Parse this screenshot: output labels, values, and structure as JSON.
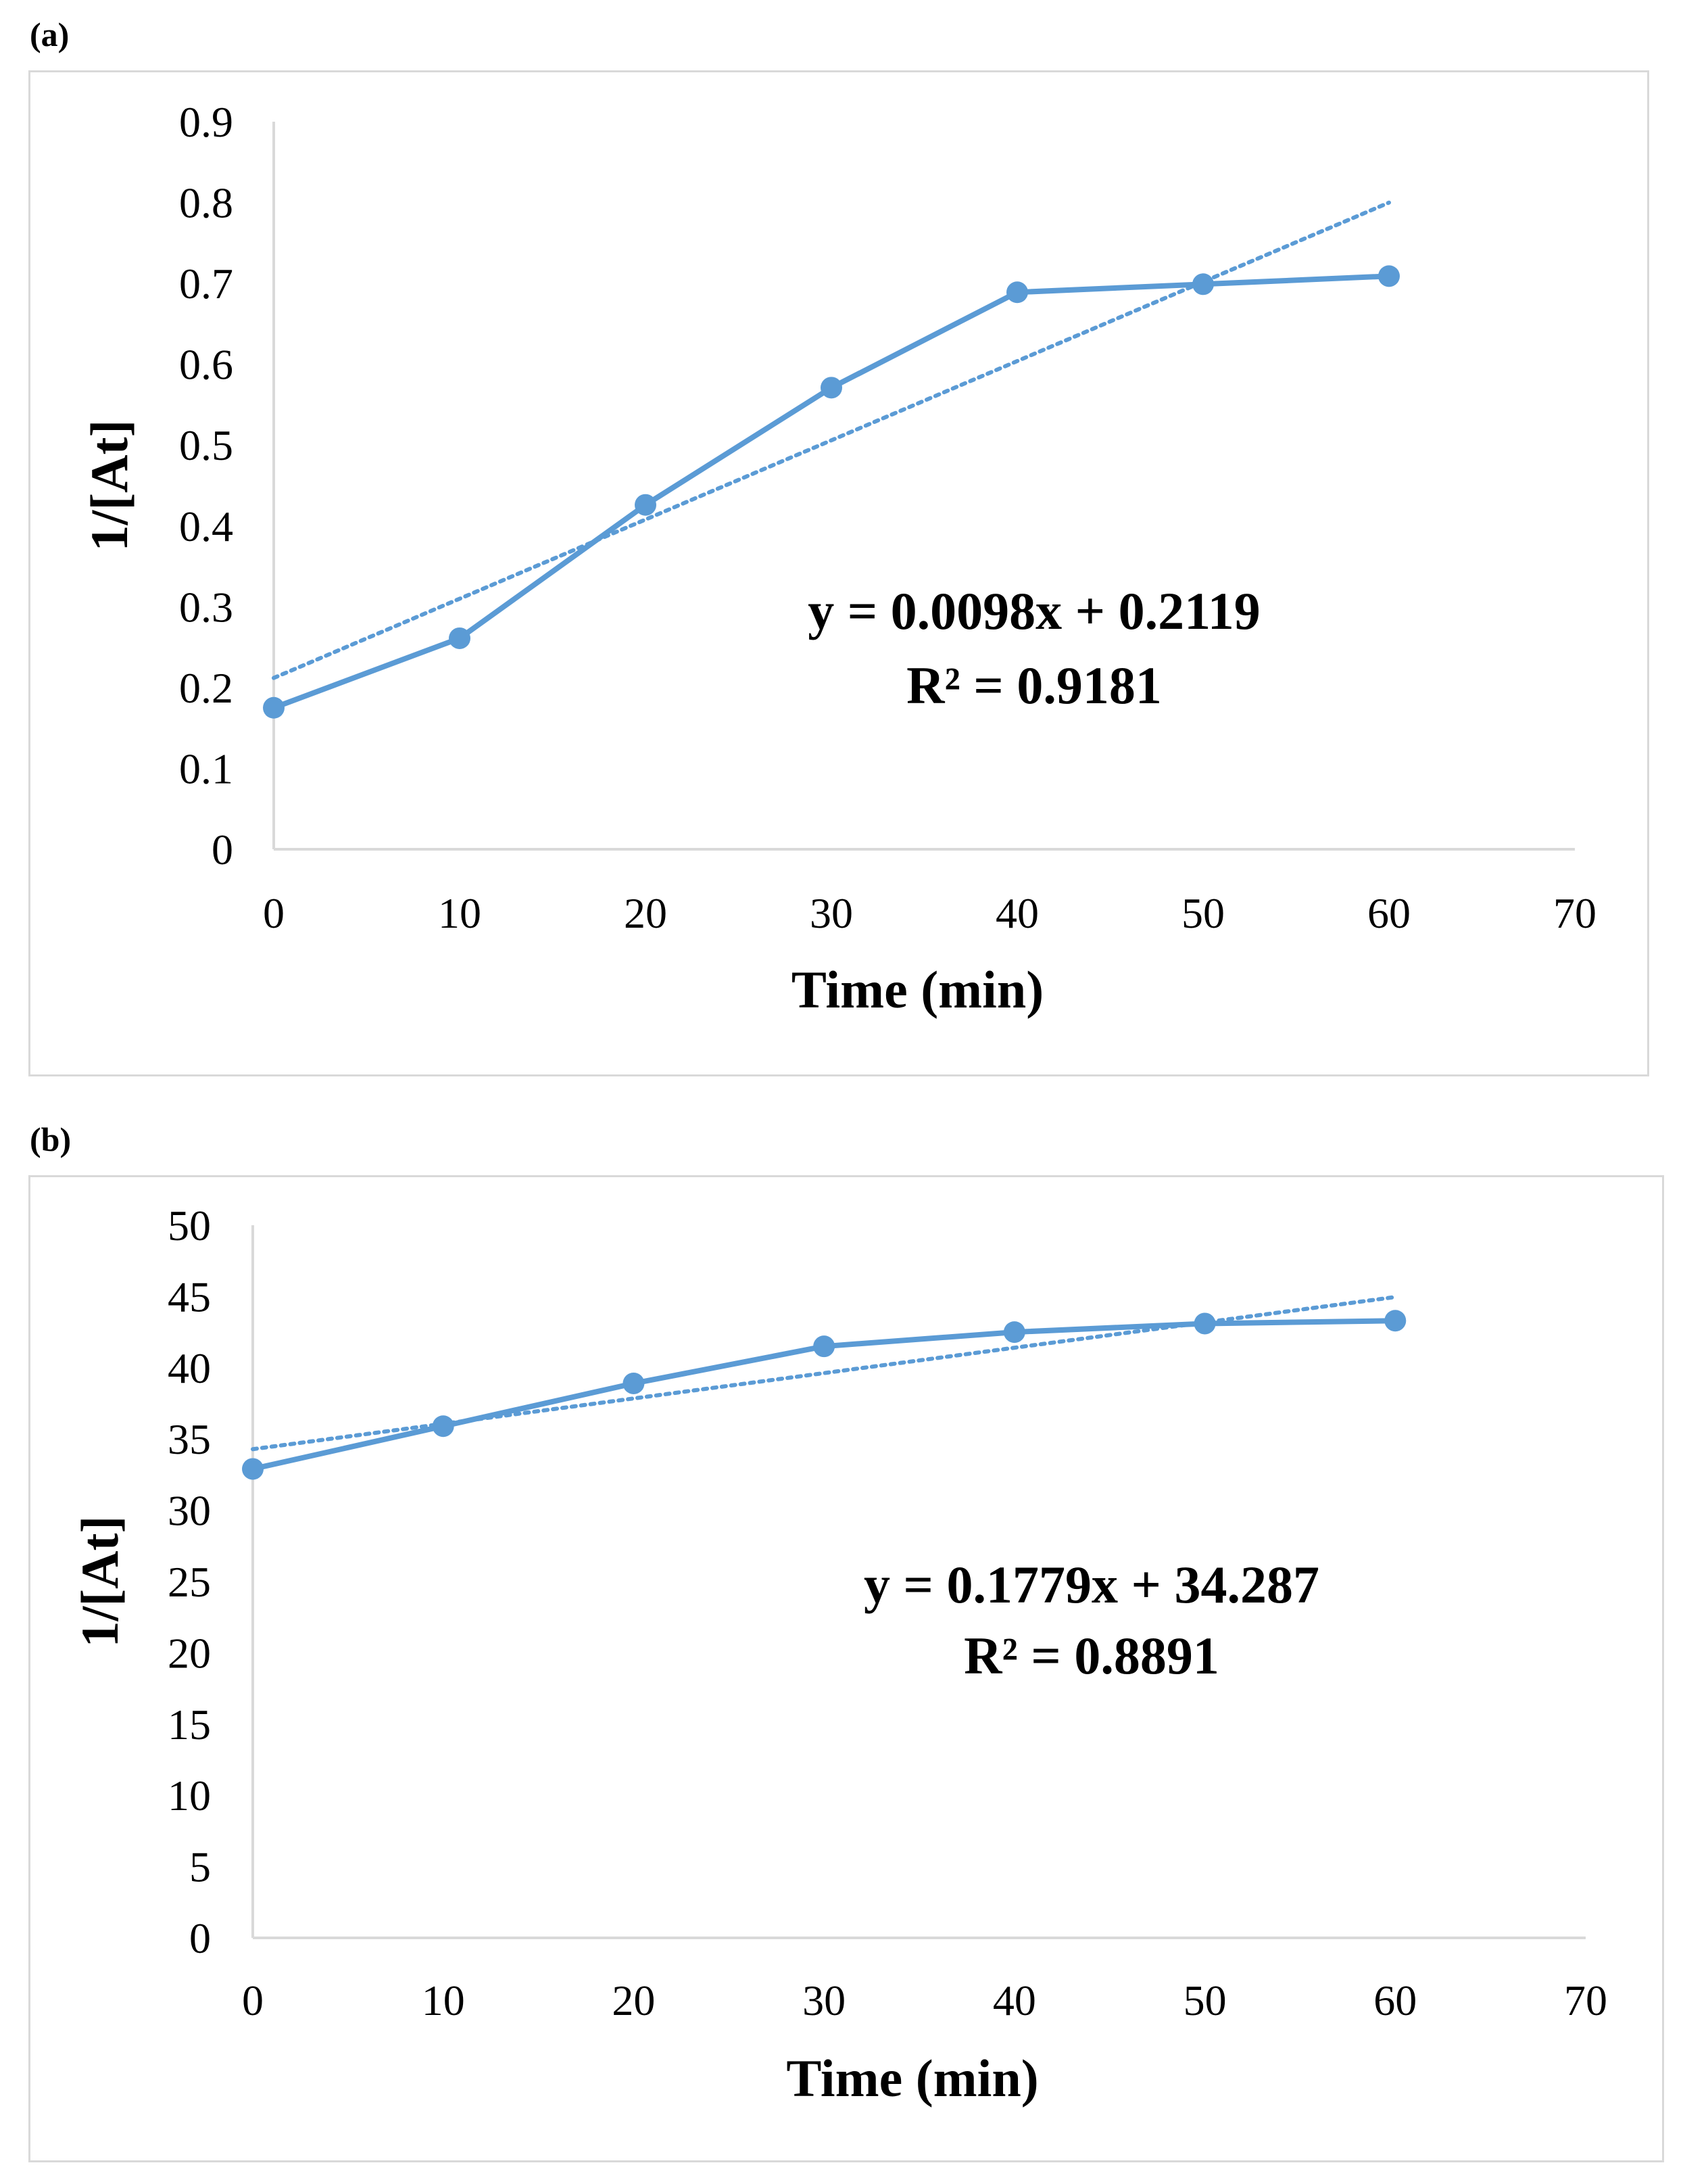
{
  "panels": [
    {
      "label": "(a)"
    },
    {
      "label": "(b)"
    }
  ],
  "colors": {
    "series": "#5b9bd5",
    "axis": "#d9d9d9",
    "frame": "#d9d9d9"
  },
  "chart_data": [
    {
      "type": "line",
      "panel": "(a)",
      "xlabel": "Time (min)",
      "ylabel": "1/[At]",
      "xlim": [
        0,
        70
      ],
      "ylim": [
        0,
        0.9
      ],
      "xticks": [
        "0",
        "10",
        "20",
        "30",
        "40",
        "50",
        "60",
        "70"
      ],
      "yticks": [
        "0",
        "0.1",
        "0.2",
        "0.3",
        "0.4",
        "0.5",
        "0.6",
        "0.7",
        "0.8",
        "0.9"
      ],
      "x": [
        0,
        10,
        20,
        30,
        40,
        50,
        60
      ],
      "series": [
        {
          "name": "1/[At]",
          "values": [
            0.175,
            0.261,
            0.426,
            0.571,
            0.689,
            0.699,
            0.709
          ]
        }
      ],
      "trendline": {
        "type": "linear",
        "slope": 0.0098,
        "intercept": 0.2119,
        "x_range": [
          0,
          60
        ]
      },
      "equation": "y = 0.0098x + 0.2119",
      "r2": "R² = 0.9181",
      "grid": false
    },
    {
      "type": "line",
      "panel": "(b)",
      "xlabel": "Time (min)",
      "ylabel": "1/[At]",
      "xlim": [
        0,
        70
      ],
      "ylim": [
        0,
        50
      ],
      "xticks": [
        "0",
        "10",
        "20",
        "30",
        "40",
        "50",
        "60",
        "70"
      ],
      "yticks": [
        "0",
        "5",
        "10",
        "15",
        "20",
        "25",
        "30",
        "35",
        "40",
        "45",
        "50"
      ],
      "x": [
        0,
        10,
        20,
        30,
        40,
        50,
        60
      ],
      "series": [
        {
          "name": "1/[At]",
          "values": [
            32.9,
            35.9,
            38.9,
            41.5,
            42.5,
            43.1,
            43.3
          ]
        }
      ],
      "trendline": {
        "type": "linear",
        "slope": 0.1779,
        "intercept": 34.287,
        "x_range": [
          0,
          60
        ]
      },
      "equation": "y = 0.1779x + 34.287",
      "r2": "R² = 0.8891",
      "grid": false
    }
  ]
}
